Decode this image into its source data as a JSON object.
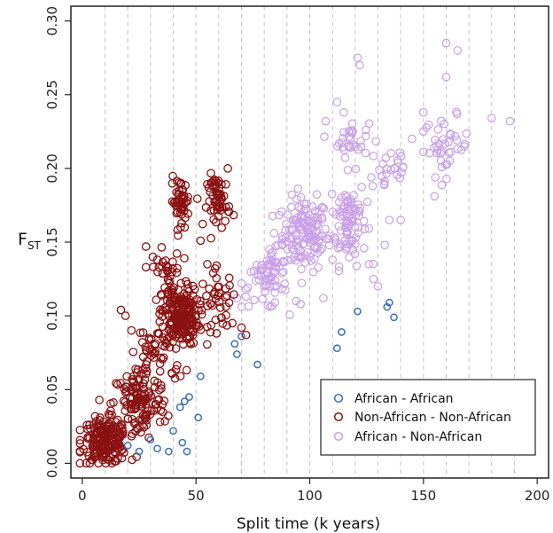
{
  "chart_data": {
    "type": "scatter",
    "title": "",
    "xlabel": "Split time (k years)",
    "ylabel": {
      "main": "F",
      "subscript": "ST"
    },
    "xlim": [
      -5,
      205
    ],
    "ylim": [
      -0.01,
      0.31
    ],
    "x_ticks": [
      0,
      50,
      100,
      150,
      200
    ],
    "y_ticks": [
      0.0,
      0.05,
      0.1,
      0.15,
      0.2,
      0.25,
      0.3
    ],
    "y_tick_labels": [
      "0.00",
      "0.05",
      "0.10",
      "0.15",
      "0.20",
      "0.25",
      "0.30"
    ],
    "vertical_gridlines_at": [
      10,
      20,
      30,
      40,
      50,
      60,
      70,
      80,
      90,
      100,
      110,
      120,
      130,
      140,
      150,
      160,
      170,
      180,
      190
    ],
    "legend_position": "bottom-right",
    "series": [
      {
        "name": "African - African",
        "color": "#3a6fb5",
        "points": [
          [
            20,
            0.012
          ],
          [
            25,
            0.008
          ],
          [
            30,
            0.016
          ],
          [
            33,
            0.01
          ],
          [
            38,
            0.008
          ],
          [
            40,
            0.022
          ],
          [
            43,
            0.038
          ],
          [
            44,
            0.014
          ],
          [
            45,
            0.042
          ],
          [
            46,
            0.008
          ],
          [
            47,
            0.045
          ],
          [
            51,
            0.031
          ],
          [
            52,
            0.059
          ],
          [
            67,
            0.081
          ],
          [
            68,
            0.074
          ],
          [
            70,
            0.086
          ],
          [
            77,
            0.067
          ],
          [
            112,
            0.078
          ],
          [
            114,
            0.089
          ],
          [
            121,
            0.103
          ],
          [
            134,
            0.106
          ],
          [
            135,
            0.109
          ],
          [
            137,
            0.099
          ]
        ]
      },
      {
        "name": "Non-African - Non-African",
        "color": "#8b1212",
        "clusters": [
          {
            "center": [
              10,
              0.015
            ],
            "spread": [
              10,
              0.015
            ],
            "count": 190
          },
          {
            "center": [
              25,
              0.04
            ],
            "spread": [
              12,
              0.025
            ],
            "count": 120
          },
          {
            "center": [
              43,
              0.1
            ],
            "spread": [
              8,
              0.02
            ],
            "count": 200
          },
          {
            "center": [
              33,
              0.075
            ],
            "spread": [
              12,
              0.025
            ],
            "count": 60
          },
          {
            "center": [
              37,
              0.13
            ],
            "spread": [
              6,
              0.015
            ],
            "count": 30
          },
          {
            "center": [
              43,
              0.178
            ],
            "spread": [
              4,
              0.015
            ],
            "count": 50
          },
          {
            "center": [
              60,
              0.178
            ],
            "spread": [
              5,
              0.018
            ],
            "count": 60
          },
          {
            "center": [
              60,
              0.11
            ],
            "spread": [
              8,
              0.02
            ],
            "count": 40
          }
        ],
        "extra_points": [
          [
            28,
            0.147
          ],
          [
            31,
            0.14
          ],
          [
            33,
            0.138
          ],
          [
            17,
            0.104
          ],
          [
            19,
            0.1
          ],
          [
            66,
            0.095
          ],
          [
            70,
            0.092
          ],
          [
            72,
            0.087
          ],
          [
            55,
            0.135
          ],
          [
            52,
            0.151
          ],
          [
            45,
            0.16
          ],
          [
            64,
            0.2
          ]
        ]
      },
      {
        "name": "African - Non-African",
        "color": "#c9a0e8",
        "clusters": [
          {
            "center": [
              98,
              0.155
            ],
            "spread": [
              10,
              0.025
            ],
            "count": 130
          },
          {
            "center": [
              117,
              0.165
            ],
            "spread": [
              8,
              0.03
            ],
            "count": 90
          },
          {
            "center": [
              118,
              0.22
            ],
            "spread": [
              8,
              0.012
            ],
            "count": 30
          },
          {
            "center": [
              160,
              0.215
            ],
            "spread": [
              10,
              0.02
            ],
            "count": 40
          },
          {
            "center": [
              80,
              0.12
            ],
            "spread": [
              10,
              0.015
            ],
            "count": 40
          },
          {
            "center": [
              135,
              0.2
            ],
            "spread": [
              10,
              0.02
            ],
            "count": 25
          },
          {
            "center": [
              85,
              0.135
            ],
            "spread": [
              6,
              0.02
            ],
            "count": 30
          }
        ],
        "extra_points": [
          [
            121,
            0.275
          ],
          [
            122,
            0.27
          ],
          [
            160,
            0.285
          ],
          [
            165,
            0.28
          ],
          [
            160,
            0.262
          ],
          [
            112,
            0.245
          ],
          [
            115,
            0.238
          ],
          [
            107,
            0.232
          ],
          [
            150,
            0.238
          ],
          [
            188,
            0.232
          ],
          [
            180,
            0.234
          ],
          [
            145,
            0.22
          ],
          [
            150,
            0.225
          ],
          [
            135,
            0.165
          ],
          [
            140,
            0.165
          ],
          [
            72,
            0.113
          ],
          [
            68,
            0.112
          ],
          [
            94,
            0.11
          ],
          [
            96,
            0.108
          ],
          [
            126,
            0.135
          ],
          [
            88,
            0.152
          ],
          [
            86,
            0.148
          ],
          [
            70,
            0.122
          ],
          [
            106,
            0.112
          ],
          [
            110,
            0.138
          ],
          [
            130,
            0.12
          ],
          [
            128,
            0.125
          ],
          [
            133,
            0.148
          ]
        ]
      }
    ]
  }
}
